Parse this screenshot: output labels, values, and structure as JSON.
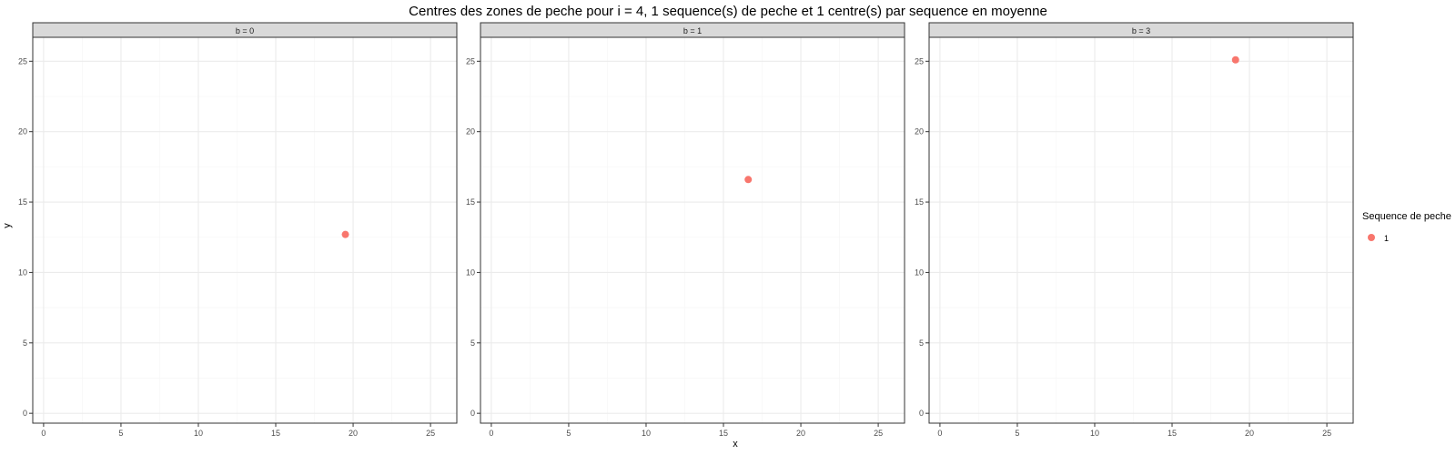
{
  "chart_data": {
    "type": "scatter",
    "title": "Centres des zones de peche pour i = 4, 1 sequence(s) de peche et 1 centre(s) par sequence en moyenne",
    "xlabel": "x",
    "ylabel": "y",
    "xlim": [
      -0.7,
      26.7
    ],
    "ylim": [
      -0.7,
      26.7
    ],
    "xticks": [
      0,
      5,
      10,
      15,
      20,
      25
    ],
    "yticks": [
      0,
      5,
      10,
      15,
      20,
      25
    ],
    "grid": true,
    "legend": {
      "title": "Sequence de peche",
      "position": "right",
      "entries": [
        {
          "label": "1",
          "color": "#F8766D"
        }
      ]
    },
    "panels": [
      {
        "strip": "b = 0",
        "points": [
          {
            "x": 19.5,
            "y": 12.7,
            "series": "1"
          }
        ]
      },
      {
        "strip": "b = 1",
        "points": [
          {
            "x": 16.6,
            "y": 16.6,
            "series": "1"
          }
        ]
      },
      {
        "strip": "b = 3",
        "points": [
          {
            "x": 19.1,
            "y": 25.1,
            "series": "1"
          }
        ]
      }
    ],
    "colors": {
      "point": "#F8766D",
      "strip_fill": "#D9D9D9",
      "grid_major": "#EBEBEB",
      "grid_minor": "#F5F5F5",
      "panel_border": "#333333",
      "tick_text": "#4D4D4D"
    }
  }
}
